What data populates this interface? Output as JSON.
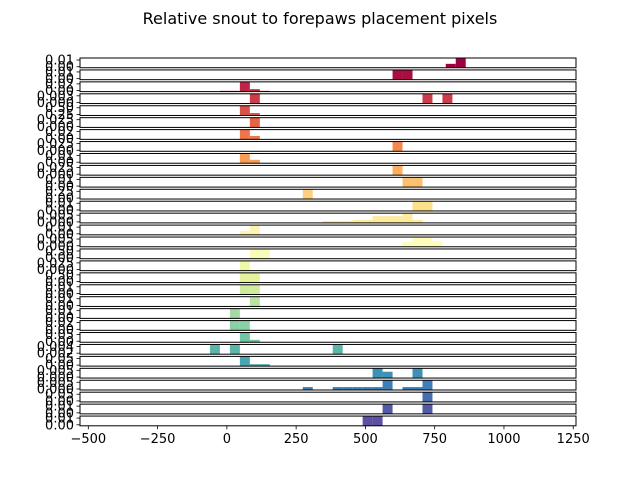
{
  "chart_data": {
    "type": "bar",
    "title": "Relative snout to forepaws placement pixels",
    "xlabel": "",
    "ylabel": "",
    "xlim": [
      -530,
      1260
    ],
    "x_ticks": [
      -500,
      -250,
      0,
      250,
      500,
      750,
      1000,
      1250
    ],
    "x_tick_labels": [
      "−500",
      "−250",
      "0",
      "250",
      "500",
      "750",
      "1000",
      "1250"
    ],
    "grid": false,
    "bin_width": 36,
    "panels": [
      {
        "y_labels": [
          "0.01",
          "0.00"
        ],
        "color": "#9e0142",
        "bars": [
          {
            "x": 790,
            "h": 0.4
          },
          {
            "x": 826,
            "h": 1.0
          }
        ]
      },
      {
        "y_labels": [
          "0.01",
          "0.00"
        ],
        "color": "#a90d44",
        "bars": [
          {
            "x": 598,
            "h": 1.0
          },
          {
            "x": 634,
            "h": 1.0
          }
        ]
      },
      {
        "y_labels": [
          "0.02",
          "0.00"
        ],
        "color": "#be2648",
        "bars": [
          {
            "x": -25,
            "h": 0.08
          },
          {
            "x": 11,
            "h": 0.08
          },
          {
            "x": 47,
            "h": 1.0
          },
          {
            "x": 83,
            "h": 0.25
          },
          {
            "x": 119,
            "h": 0.08
          }
        ]
      },
      {
        "y_labels": [
          "0.003",
          "0.000"
        ],
        "color": "#cc3d4b",
        "bars": [
          {
            "x": 83,
            "h": 1.0
          },
          {
            "x": 706,
            "h": 1.0
          },
          {
            "x": 778,
            "h": 1.0
          }
        ]
      },
      {
        "y_labels": [
          "0.50",
          "0.25"
        ],
        "color": "#d9524a",
        "bars": [
          {
            "x": 47,
            "h": 1.0
          },
          {
            "x": 83,
            "h": 0.25
          }
        ]
      },
      {
        "y_labels": [
          "0.025",
          "0.000"
        ],
        "color": "#e56347",
        "bars": [
          {
            "x": 83,
            "h": 1.0
          }
        ]
      },
      {
        "y_labels": [
          "0.02",
          "0.00"
        ],
        "color": "#ee7649",
        "bars": [
          {
            "x": 47,
            "h": 1.0
          },
          {
            "x": 83,
            "h": 0.35
          }
        ]
      },
      {
        "y_labels": [
          "0.025",
          "0.000"
        ],
        "color": "#f4894e",
        "bars": [
          {
            "x": 598,
            "h": 1.0
          }
        ]
      },
      {
        "y_labels": [
          "0.01",
          "0.00"
        ],
        "color": "#f89c56",
        "bars": [
          {
            "x": 47,
            "h": 1.0
          },
          {
            "x": 83,
            "h": 0.35
          }
        ]
      },
      {
        "y_labels": [
          "0.025",
          "0.000"
        ],
        "color": "#fcaf5f",
        "bars": [
          {
            "x": 598,
            "h": 1.0
          }
        ]
      },
      {
        "y_labels": [
          "0.01",
          "0.00"
        ],
        "color": "#fdc070",
        "bars": [
          {
            "x": 634,
            "h": 1.0
          },
          {
            "x": 670,
            "h": 1.0
          }
        ]
      },
      {
        "y_labels": [
          "0.25",
          "0.00"
        ],
        "color": "#fdd081",
        "bars": [
          {
            "x": 274,
            "h": 1.0
          }
        ]
      },
      {
        "y_labels": [
          "0.01",
          "0.00"
        ],
        "color": "#fee08b",
        "bars": [
          {
            "x": 670,
            "h": 1.0
          },
          {
            "x": 706,
            "h": 1.0
          }
        ]
      },
      {
        "y_labels": [
          "0.005",
          "0.000"
        ],
        "color": "#feeb9d",
        "bars": [
          {
            "x": 346,
            "h": 0.2
          },
          {
            "x": 382,
            "h": 0.2
          },
          {
            "x": 418,
            "h": 0.2
          },
          {
            "x": 454,
            "h": 0.3
          },
          {
            "x": 490,
            "h": 0.3
          },
          {
            "x": 526,
            "h": 0.7
          },
          {
            "x": 562,
            "h": 0.7
          },
          {
            "x": 598,
            "h": 0.7
          },
          {
            "x": 634,
            "h": 1.0
          },
          {
            "x": 670,
            "h": 0.3
          }
        ]
      },
      {
        "y_labels": [
          "0.01",
          "0.00"
        ],
        "color": "#fff5b3",
        "bars": [
          {
            "x": 47,
            "h": 0.4
          },
          {
            "x": 83,
            "h": 1.0
          }
        ]
      },
      {
        "y_labels": [
          "0.005",
          "0.000"
        ],
        "color": "#fefdbe",
        "bars": [
          {
            "x": 634,
            "h": 0.5
          },
          {
            "x": 670,
            "h": 1.0
          },
          {
            "x": 706,
            "h": 1.0
          },
          {
            "x": 742,
            "h": 0.6
          }
        ]
      },
      {
        "y_labels": [
          "0.50",
          "0.00"
        ],
        "color": "#f9fcb6",
        "bars": [
          {
            "x": 83,
            "h": 1.0
          },
          {
            "x": 119,
            "h": 1.0
          }
        ]
      },
      {
        "y_labels": [
          "0.025",
          "0.000"
        ],
        "color": "#eff8a6",
        "bars": [
          {
            "x": 47,
            "h": 1.0
          }
        ]
      },
      {
        "y_labels": [
          "0.50",
          "0.00"
        ],
        "color": "#e2f399",
        "bars": [
          {
            "x": 47,
            "h": 1.0
          },
          {
            "x": 83,
            "h": 1.0
          }
        ]
      },
      {
        "y_labels": [
          "0.01",
          "0.00"
        ],
        "color": "#cfec9d",
        "bars": [
          {
            "x": 47,
            "h": 1.0
          },
          {
            "x": 83,
            "h": 1.0
          }
        ]
      },
      {
        "y_labels": [
          "0.01",
          "0.00"
        ],
        "color": "#bae3a0",
        "bars": [
          {
            "x": 83,
            "h": 1.0
          }
        ]
      },
      {
        "y_labels": [
          "0.01",
          "0.00"
        ],
        "color": "#a3daa3",
        "bars": [
          {
            "x": 11,
            "h": 1.0
          }
        ]
      },
      {
        "y_labels": [
          "0.02",
          "0.00"
        ],
        "color": "#89d0a4",
        "bars": [
          {
            "x": 11,
            "h": 1.0
          },
          {
            "x": 47,
            "h": 1.0
          }
        ]
      },
      {
        "y_labels": [
          "0.05",
          "0.00"
        ],
        "color": "#70c5a4",
        "bars": [
          {
            "x": 47,
            "h": 1.0
          },
          {
            "x": 83,
            "h": 0.25
          }
        ]
      },
      {
        "y_labels": [
          "0.004",
          "0.002"
        ],
        "color": "#5bb5a9",
        "bars": [
          {
            "x": -61,
            "h": 1.0
          },
          {
            "x": 11,
            "h": 1.0
          },
          {
            "x": 382,
            "h": 1.0
          }
        ]
      },
      {
        "y_labels": [
          "0.05",
          "0.00"
        ],
        "color": "#49a6b0",
        "bars": [
          {
            "x": 47,
            "h": 1.0
          },
          {
            "x": 83,
            "h": 0.2
          },
          {
            "x": 119,
            "h": 0.2
          }
        ]
      },
      {
        "y_labels": [
          "0.005",
          "0.000"
        ],
        "color": "#3d91b7",
        "bars": [
          {
            "x": 526,
            "h": 1.0
          },
          {
            "x": 562,
            "h": 0.65
          },
          {
            "x": 670,
            "h": 1.0
          }
        ]
      },
      {
        "y_labels": [
          "0.005",
          "0.000"
        ],
        "color": "#3f7fb8",
        "bars": [
          {
            "x": 274,
            "h": 0.3
          },
          {
            "x": 382,
            "h": 0.3
          },
          {
            "x": 418,
            "h": 0.3
          },
          {
            "x": 454,
            "h": 0.3
          },
          {
            "x": 490,
            "h": 0.3
          },
          {
            "x": 526,
            "h": 0.3
          },
          {
            "x": 562,
            "h": 1.0
          },
          {
            "x": 634,
            "h": 0.3
          },
          {
            "x": 670,
            "h": 0.3
          },
          {
            "x": 706,
            "h": 1.0
          }
        ]
      },
      {
        "y_labels": [
          "0.05",
          "0.00"
        ],
        "color": "#486cb0",
        "bars": [
          {
            "x": 706,
            "h": 1.0
          }
        ]
      },
      {
        "y_labels": [
          "0.01",
          "0.00"
        ],
        "color": "#525aa6",
        "bars": [
          {
            "x": 562,
            "h": 1.0
          },
          {
            "x": 706,
            "h": 1.0
          }
        ]
      },
      {
        "y_labels": [
          "0.01",
          "0.00"
        ],
        "color": "#5e4fa2",
        "bars": [
          {
            "x": 490,
            "h": 1.0
          },
          {
            "x": 526,
            "h": 1.0
          }
        ]
      }
    ]
  }
}
